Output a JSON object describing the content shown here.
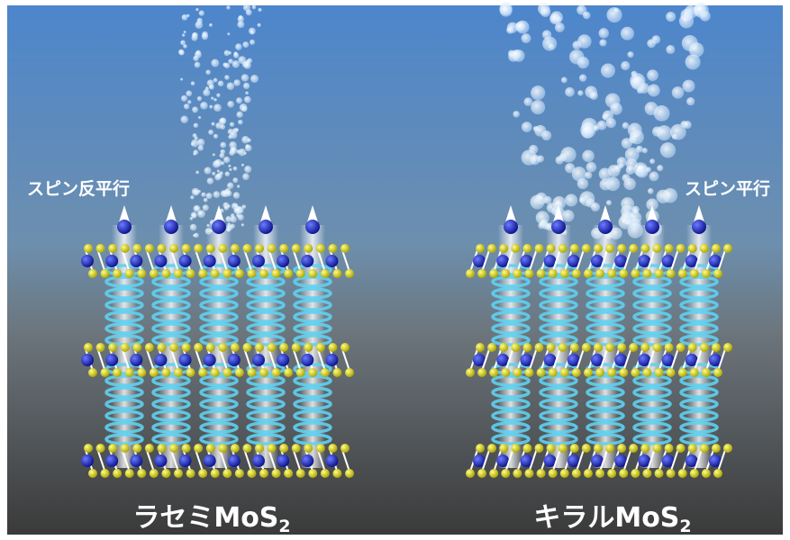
{
  "labels": {
    "left_spin": "スピン反平行",
    "right_spin": "スピン平行",
    "left_material": {
      "main": "ラセミMoS",
      "sub": "2"
    },
    "right_material": {
      "main": "キラルMoS",
      "sub": "2"
    }
  }
}
